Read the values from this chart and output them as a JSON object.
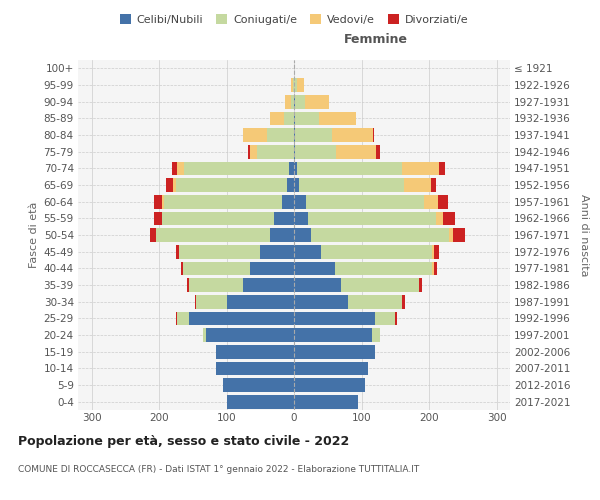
{
  "age_groups": [
    "0-4",
    "5-9",
    "10-14",
    "15-19",
    "20-24",
    "25-29",
    "30-34",
    "35-39",
    "40-44",
    "45-49",
    "50-54",
    "55-59",
    "60-64",
    "65-69",
    "70-74",
    "75-79",
    "80-84",
    "85-89",
    "90-94",
    "95-99",
    "100+"
  ],
  "birth_years": [
    "2017-2021",
    "2012-2016",
    "2007-2011",
    "2002-2006",
    "1997-2001",
    "1992-1996",
    "1987-1991",
    "1982-1986",
    "1977-1981",
    "1972-1976",
    "1967-1971",
    "1962-1966",
    "1957-1961",
    "1952-1956",
    "1947-1951",
    "1942-1946",
    "1937-1941",
    "1932-1936",
    "1927-1931",
    "1922-1926",
    "≤ 1921"
  ],
  "males": {
    "celibe": [
      100,
      105,
      115,
      115,
      130,
      155,
      100,
      75,
      65,
      50,
      35,
      30,
      18,
      10,
      8,
      0,
      0,
      0,
      0,
      0,
      0
    ],
    "coniugato": [
      0,
      0,
      0,
      0,
      5,
      18,
      45,
      80,
      100,
      120,
      170,
      165,
      175,
      165,
      155,
      55,
      40,
      15,
      5,
      2,
      0
    ],
    "vedovo": [
      0,
      0,
      0,
      0,
      0,
      0,
      0,
      0,
      0,
      0,
      0,
      0,
      3,
      5,
      10,
      10,
      35,
      20,
      8,
      2,
      0
    ],
    "divorziato": [
      0,
      0,
      0,
      0,
      0,
      2,
      2,
      3,
      3,
      5,
      8,
      12,
      12,
      10,
      8,
      3,
      0,
      0,
      0,
      0,
      0
    ]
  },
  "females": {
    "nubile": [
      95,
      105,
      110,
      120,
      115,
      120,
      80,
      70,
      60,
      40,
      25,
      20,
      18,
      8,
      5,
      2,
      2,
      2,
      2,
      0,
      0
    ],
    "coniugata": [
      0,
      0,
      0,
      0,
      12,
      30,
      80,
      115,
      145,
      165,
      205,
      190,
      175,
      155,
      155,
      60,
      55,
      35,
      15,
      5,
      0
    ],
    "vedova": [
      0,
      0,
      0,
      0,
      0,
      0,
      0,
      0,
      2,
      2,
      5,
      10,
      20,
      40,
      55,
      60,
      60,
      55,
      35,
      10,
      0
    ],
    "divorziata": [
      0,
      0,
      0,
      0,
      0,
      3,
      5,
      5,
      5,
      8,
      18,
      18,
      15,
      8,
      8,
      5,
      2,
      0,
      0,
      0,
      0
    ]
  },
  "colors": {
    "celibe": "#4472a8",
    "coniugato": "#c5d9a0",
    "vedovo": "#f5c977",
    "divorziato": "#cc2222"
  },
  "xlim": 320,
  "title": "Popolazione per età, sesso e stato civile - 2022",
  "subtitle": "COMUNE DI ROCCASECCA (FR) - Dati ISTAT 1° gennaio 2022 - Elaborazione TUTTITALIA.IT",
  "ylabel_left": "Fasce di età",
  "ylabel_right": "Anni di nascita",
  "legend_labels": [
    "Celibi/Nubili",
    "Coniugati/e",
    "Vedovi/e",
    "Divorziati/e"
  ],
  "bg_color": "#f5f5f5",
  "grid_color": "#cccccc"
}
